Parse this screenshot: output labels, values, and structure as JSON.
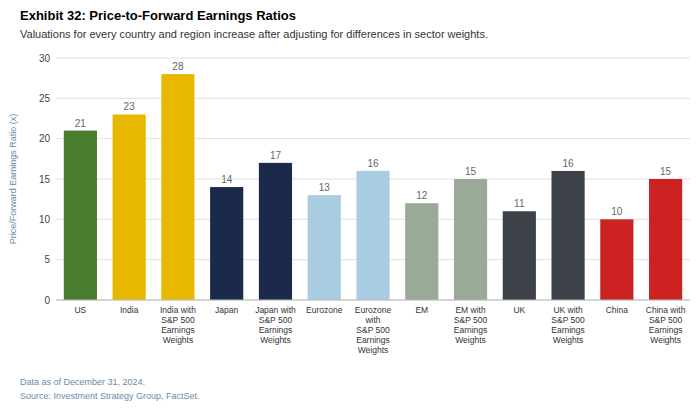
{
  "chart_data": {
    "type": "bar",
    "title": "Exhibit 32: Price-to-Forward Earnings Ratios",
    "subtitle": "Valuations for every country and region increase after adjusting for differences in sector weights.",
    "y_label": "Price/Forward Earnings Ratio (x)",
    "categories": [
      "US",
      "India",
      "India with\nS&P 500\nEarnings Weights",
      "Japan",
      "Japan with\nS&P 500\nEarnings Weights",
      "Eurozone",
      "Eurozone with\nS&P 500\nEarnings Weights",
      "EM",
      "EM with\nS&P 500\nEarnings Weights",
      "UK",
      "UK with\nS&P 500\nEarnings Weights",
      "China",
      "China with\nS&P 500\nEarnings Weights"
    ],
    "values": [
      21,
      23,
      28,
      14,
      17,
      13,
      16,
      12,
      15,
      11,
      16,
      10,
      15
    ],
    "colors": [
      "#4a7c2f",
      "#e8b800",
      "#e8b800",
      "#1b2a4a",
      "#1b2a4a",
      "#a8cce0",
      "#a8cce0",
      "#9aaa98",
      "#9aaa98",
      "#3c4248",
      "#3c4248",
      "#cc2222",
      "#cc2222"
    ],
    "ylim": [
      0,
      30
    ],
    "yticks": [
      0,
      5,
      10,
      15,
      20,
      25,
      30
    ],
    "grid": true,
    "data_labels": true,
    "annotations": [
      "Data as of December 31, 2024.",
      "Source: Investment Strategy Group, FactSet."
    ]
  }
}
